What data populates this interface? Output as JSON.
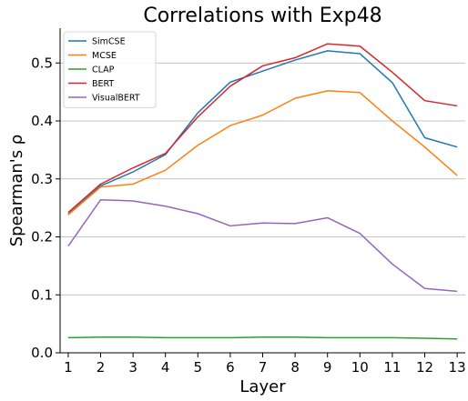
{
  "chart_data": {
    "type": "line",
    "title": "Correlations with Exp48",
    "xlabel": "Layer",
    "ylabel": "Spearman's ρ",
    "x": [
      1,
      2,
      3,
      4,
      5,
      6,
      7,
      8,
      9,
      10,
      11,
      12,
      13
    ],
    "xlim": [
      0.75,
      13.25
    ],
    "ylim": [
      0.0,
      0.56
    ],
    "yticks": [
      0.0,
      0.1,
      0.2,
      0.3,
      0.4,
      0.5
    ],
    "ytick_labels": [
      "0.0",
      "0.1",
      "0.2",
      "0.3",
      "0.4",
      "0.5"
    ],
    "grid": "horizontal",
    "legend_position": "top-left",
    "series": [
      {
        "name": "SimCSE",
        "color": "#1f77b4",
        "values": [
          0.239,
          0.288,
          0.312,
          0.342,
          0.414,
          0.467,
          0.486,
          0.505,
          0.521,
          0.516,
          0.466,
          0.371,
          0.355
        ]
      },
      {
        "name": "MCSE",
        "color": "#ff7f0e",
        "values": [
          0.238,
          0.286,
          0.291,
          0.315,
          0.358,
          0.392,
          0.41,
          0.439,
          0.452,
          0.449,
          0.4,
          0.355,
          0.306
        ]
      },
      {
        "name": "CLAP",
        "color": "#2ca02c",
        "values": [
          0.026,
          0.027,
          0.027,
          0.026,
          0.026,
          0.026,
          0.027,
          0.027,
          0.026,
          0.026,
          0.026,
          0.025,
          0.024
        ]
      },
      {
        "name": "BERT",
        "color": "#d62728",
        "values": [
          0.242,
          0.291,
          0.319,
          0.344,
          0.407,
          0.46,
          0.495,
          0.509,
          0.533,
          0.529,
          0.484,
          0.435,
          0.426
        ]
      },
      {
        "name": "VisualBERT",
        "color": "#9467bd",
        "values": [
          0.184,
          0.264,
          0.262,
          0.253,
          0.24,
          0.219,
          0.224,
          0.223,
          0.233,
          0.206,
          0.153,
          0.111,
          0.106
        ]
      }
    ]
  }
}
